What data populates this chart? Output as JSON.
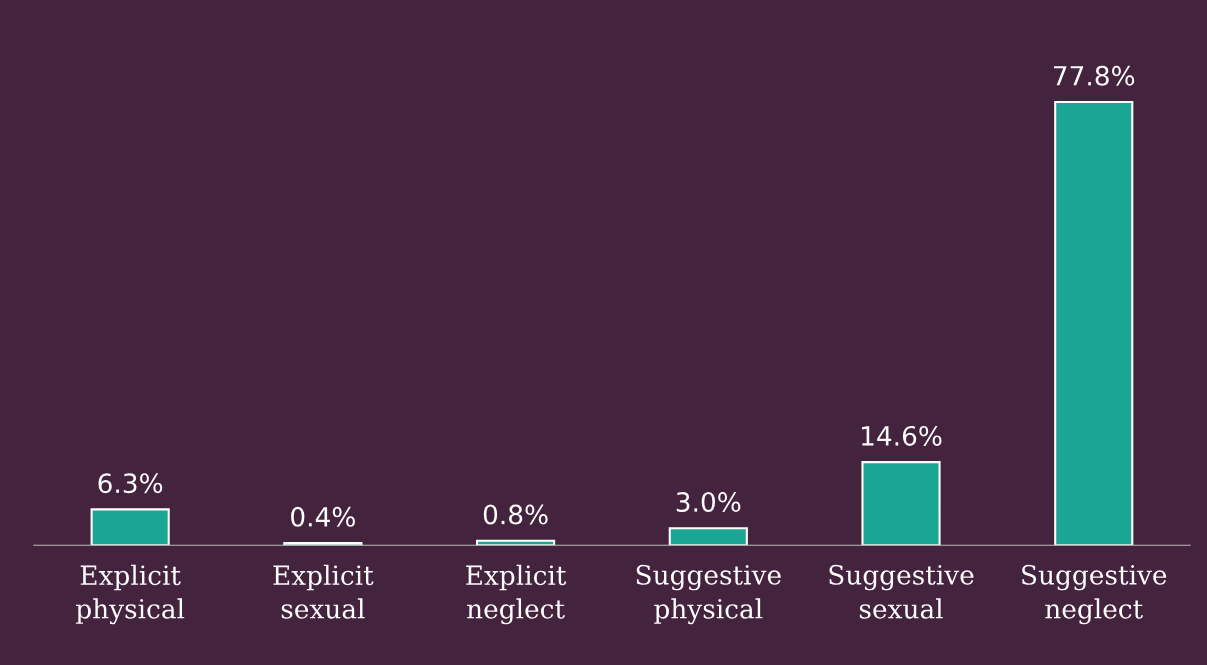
{
  "chart_data": {
    "type": "bar",
    "categories": [
      "Explicit\nphysical",
      "Explicit\nsexual",
      "Explicit\nneglect",
      "Suggestive\nphysical",
      "Suggestive\nsexual",
      "Suggestive\nneglect"
    ],
    "values": [
      6.3,
      0.4,
      0.8,
      3.0,
      14.6,
      77.8
    ],
    "value_labels": [
      "6.3%",
      "0.4%",
      "0.8%",
      "3.0%",
      "14.6%",
      "77.8%"
    ],
    "color": "#1ba594",
    "grid": false,
    "legend": false
  }
}
